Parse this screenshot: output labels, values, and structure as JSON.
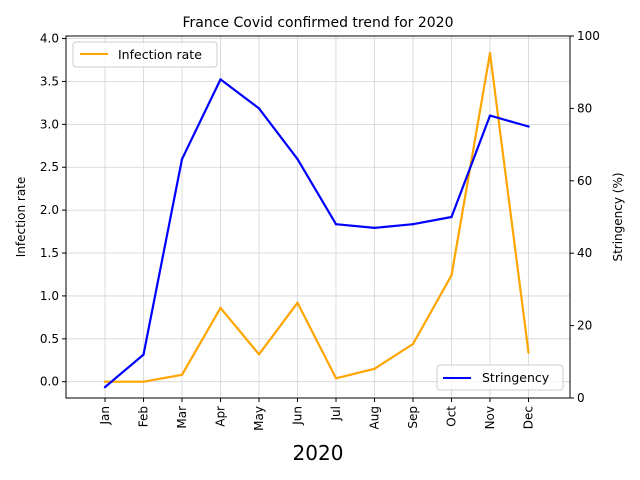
{
  "chart_data": {
    "type": "line",
    "title": "France Covid confirmed trend for 2020",
    "xlabel": "2020",
    "categories": [
      "Jan",
      "Feb",
      "Mar",
      "Apr",
      "May",
      "Jun",
      "Jul",
      "Aug",
      "Sep",
      "Oct",
      "Nov",
      "Dec"
    ],
    "left_axis": {
      "label": "Infection rate",
      "ylim": [
        -0.19,
        4.03
      ],
      "ticks": [
        "0.0",
        "0.5",
        "1.0",
        "1.5",
        "2.0",
        "2.5",
        "3.0",
        "3.5",
        "4.0"
      ]
    },
    "right_axis": {
      "label": "Stringency (%)",
      "ylim": [
        0,
        100
      ],
      "ticks": [
        "0",
        "20",
        "40",
        "60",
        "80",
        "100"
      ]
    },
    "series": [
      {
        "name": "Infection rate",
        "axis": "left",
        "color": "#FFA500",
        "values": [
          0.0,
          0.0,
          0.08,
          0.86,
          0.32,
          0.92,
          0.04,
          0.15,
          0.44,
          1.24,
          3.83,
          0.34
        ]
      },
      {
        "name": "Stringency",
        "axis": "right",
        "color": "#0000FF",
        "values": [
          3,
          12,
          66,
          88,
          80,
          66,
          48,
          47,
          48,
          50,
          78,
          75
        ]
      }
    ],
    "grid": true,
    "legend": [
      {
        "series": "Infection rate",
        "placement": "upper-left"
      },
      {
        "series": "Stringency",
        "placement": "lower-right"
      }
    ]
  }
}
